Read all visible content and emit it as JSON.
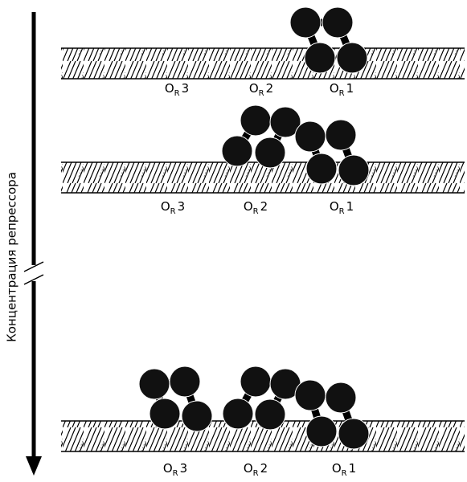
{
  "axis_label": "Концентрация репрессора",
  "panels": [
    {
      "sites": [
        {
          "letter": "O",
          "sub": "R",
          "num": "3"
        },
        {
          "letter": "O",
          "sub": "R",
          "num": "2"
        },
        {
          "letter": "O",
          "sub": "R",
          "num": "1"
        }
      ]
    },
    {
      "sites": [
        {
          "letter": "O",
          "sub": "R",
          "num": "3"
        },
        {
          "letter": "O",
          "sub": "R",
          "num": "2"
        },
        {
          "letter": "O",
          "sub": "R",
          "num": "1"
        }
      ]
    },
    {
      "sites": [
        {
          "letter": "O",
          "sub": "R",
          "num": "3"
        },
        {
          "letter": "O",
          "sub": "R",
          "num": "2"
        },
        {
          "letter": "O",
          "sub": "R",
          "num": "1"
        }
      ]
    }
  ]
}
